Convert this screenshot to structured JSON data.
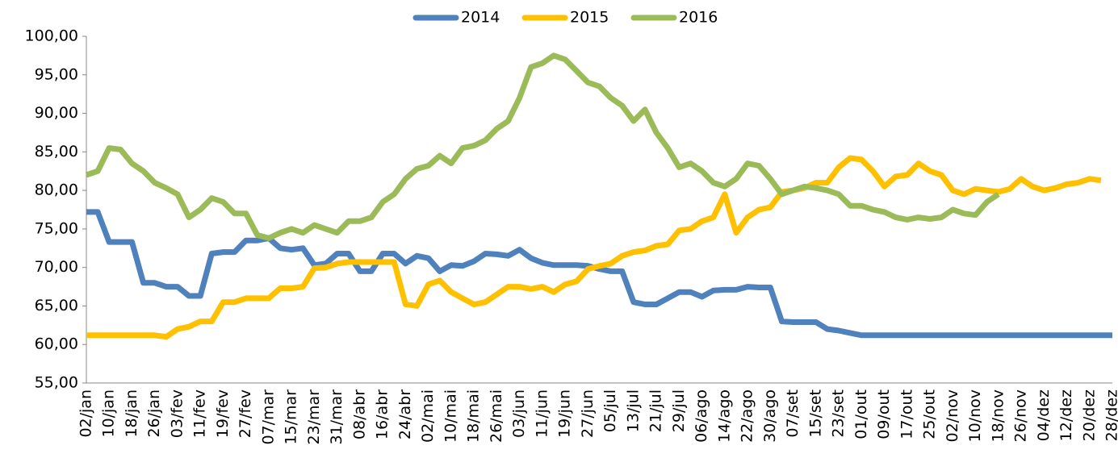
{
  "chart_data": {
    "type": "line",
    "categories": [
      "02/jan",
      null,
      "10/jan",
      null,
      "18/jan",
      null,
      "26/jan",
      null,
      "03/fev",
      null,
      "11/fev",
      null,
      "19/fev",
      null,
      "27/fev",
      null,
      "07/mar",
      null,
      "15/mar",
      null,
      "23/mar",
      null,
      "31/mar",
      null,
      "08/abr",
      null,
      "16/abr",
      null,
      "24/abr",
      null,
      "02/mai",
      null,
      "10/mai",
      null,
      "18/mai",
      null,
      "26/mai",
      null,
      "03/jun",
      null,
      "11/jun",
      null,
      "19/jun",
      null,
      "27/jun",
      null,
      "05/jul",
      null,
      "13/jul",
      null,
      "21/jul",
      null,
      "29/jul",
      null,
      "06/ago",
      null,
      "14/ago",
      null,
      "22/ago",
      null,
      "30/ago",
      null,
      "07/set",
      null,
      "15/set",
      null,
      "23/set",
      null,
      "01/out",
      null,
      "09/out",
      null,
      "17/out",
      null,
      "25/out",
      null,
      "02/nov",
      null,
      "10/nov",
      null,
      "18/nov",
      null,
      "26/nov",
      null,
      "04/dez",
      null,
      "12/dez",
      null,
      "20/dez",
      null,
      "28/dez"
    ],
    "series": [
      {
        "name": "2014",
        "color": "#4f81bd",
        "values": [
          77.2,
          77.2,
          73.3,
          73.3,
          73.3,
          68,
          68,
          67.5,
          67.5,
          66.3,
          66.3,
          71.8,
          72,
          72,
          73.5,
          73.5,
          73.8,
          72.5,
          72.3,
          72.5,
          70.3,
          70.5,
          71.8,
          71.8,
          69.5,
          69.5,
          71.8,
          71.8,
          70.5,
          71.5,
          71.2,
          69.5,
          70.3,
          70.2,
          70.8,
          71.8,
          71.7,
          71.5,
          72.3,
          71.2,
          70.6,
          70.3,
          70.3,
          70.3,
          70.2,
          69.8,
          69.5,
          69.5,
          65.5,
          65.2,
          65.2,
          66,
          66.8,
          66.8,
          66.2,
          67,
          67.1,
          67.1,
          67.5,
          67.4,
          67.4,
          63,
          62.9,
          62.9,
          62.9,
          62,
          61.8,
          61.5,
          61.2,
          61.2,
          61.2,
          61.2,
          61.2,
          61.2,
          61.2,
          61.2,
          61.2,
          61.2,
          61.2,
          61.2,
          61.2,
          61.2,
          61.2,
          61.2,
          61.2,
          61.2,
          61.2,
          61.2,
          61.2,
          61.2,
          61.2
        ]
      },
      {
        "name": "2015",
        "color": "#ffc000",
        "values": [
          61.2,
          61.2,
          61.2,
          61.2,
          61.2,
          61.2,
          61.2,
          61,
          62,
          62.3,
          63,
          63,
          65.5,
          65.5,
          66,
          66,
          66,
          67.3,
          67.3,
          67.5,
          69.9,
          70,
          70.5,
          70.7,
          70.7,
          70.7,
          70.7,
          70.7,
          65.2,
          65,
          67.8,
          68.3,
          66.8,
          66,
          65.2,
          65.5,
          66.5,
          67.5,
          67.5,
          67.2,
          67.5,
          66.8,
          67.8,
          68.2,
          69.8,
          70.2,
          70.5,
          71.5,
          72,
          72.2,
          72.8,
          73,
          74.8,
          75,
          76,
          76.5,
          79.5,
          74.5,
          76.5,
          77.5,
          77.8,
          79.8,
          80,
          80.3,
          81,
          81,
          83,
          84.2,
          84,
          82.5,
          80.5,
          81.8,
          82,
          83.5,
          82.5,
          82,
          80,
          79.5,
          80.2,
          80,
          79.8,
          80.2,
          81.5,
          80.5,
          80,
          80.3,
          80.8,
          81,
          81.5,
          81.3,
          null
        ]
      },
      {
        "name": "2016",
        "color": "#9bbb59",
        "values": [
          82,
          82.5,
          85.5,
          85.3,
          83.5,
          82.5,
          81,
          80.3,
          79.5,
          76.5,
          77.5,
          79,
          78.5,
          77,
          77,
          74.2,
          73.8,
          74.5,
          75,
          74.5,
          75.5,
          75,
          74.5,
          76,
          76,
          76.5,
          78.5,
          79.5,
          81.5,
          82.8,
          83.2,
          84.5,
          83.5,
          85.5,
          85.8,
          86.5,
          88,
          89,
          92,
          96,
          96.5,
          97.5,
          97,
          95.5,
          94,
          93.5,
          92,
          91,
          89,
          90.5,
          87.5,
          85.5,
          83,
          83.5,
          82.5,
          81,
          80.5,
          81.5,
          83.5,
          83.2,
          81.5,
          79.5,
          80,
          80.5,
          80.3,
          80,
          79.5,
          78,
          78,
          77.5,
          77.2,
          76.5,
          76.2,
          76.5,
          76.3,
          76.5,
          77.5,
          77,
          76.8,
          78.5,
          79.5,
          null,
          null,
          null,
          null,
          null,
          null,
          null,
          null,
          null,
          null
        ]
      }
    ],
    "ylim": [
      55,
      100
    ],
    "yticks": [
      {
        "value": 55,
        "label": "55,00"
      },
      {
        "value": 60,
        "label": "60,00"
      },
      {
        "value": 65,
        "label": "65,00"
      },
      {
        "value": 70,
        "label": "70,00"
      },
      {
        "value": 75,
        "label": "75,00"
      },
      {
        "value": 80,
        "label": "80,00"
      },
      {
        "value": 85,
        "label": "85,00"
      },
      {
        "value": 90,
        "label": "90,00"
      },
      {
        "value": 95,
        "label": "95,00"
      },
      {
        "value": 100,
        "label": "100,00"
      }
    ],
    "legend": "top"
  }
}
